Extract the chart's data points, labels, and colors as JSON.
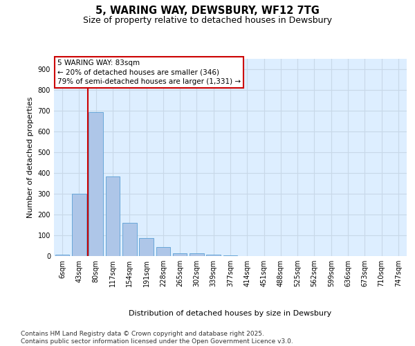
{
  "title_line1": "5, WARING WAY, DEWSBURY, WF12 7TG",
  "title_line2": "Size of property relative to detached houses in Dewsbury",
  "xlabel": "Distribution of detached houses by size in Dewsbury",
  "ylabel": "Number of detached properties",
  "bar_color": "#aec6e8",
  "bar_edge_color": "#5a9fd4",
  "grid_color": "#c8d8e8",
  "background_color": "#ddeeff",
  "vline_color": "#cc0000",
  "annotation_box_color": "#cc0000",
  "annotation_text": "5 WARING WAY: 83sqm\n← 20% of detached houses are smaller (346)\n79% of semi-detached houses are larger (1,331) →",
  "categories": [
    "6sqm",
    "43sqm",
    "80sqm",
    "117sqm",
    "154sqm",
    "191sqm",
    "228sqm",
    "265sqm",
    "302sqm",
    "339sqm",
    "377sqm",
    "414sqm",
    "451sqm",
    "488sqm",
    "525sqm",
    "562sqm",
    "599sqm",
    "636sqm",
    "673sqm",
    "710sqm",
    "747sqm"
  ],
  "values": [
    8,
    300,
    695,
    385,
    160,
    88,
    43,
    14,
    14,
    7,
    3,
    0,
    0,
    0,
    0,
    0,
    0,
    0,
    0,
    0,
    0
  ],
  "vline_x": 1.5,
  "ylim": [
    0,
    950
  ],
  "yticks": [
    0,
    100,
    200,
    300,
    400,
    500,
    600,
    700,
    800,
    900
  ],
  "footer": "Contains HM Land Registry data © Crown copyright and database right 2025.\nContains public sector information licensed under the Open Government Licence v3.0.",
  "title_fontsize": 10.5,
  "subtitle_fontsize": 9,
  "axis_label_fontsize": 8,
  "tick_fontsize": 7,
  "annotation_fontsize": 7.5,
  "footer_fontsize": 6.5
}
